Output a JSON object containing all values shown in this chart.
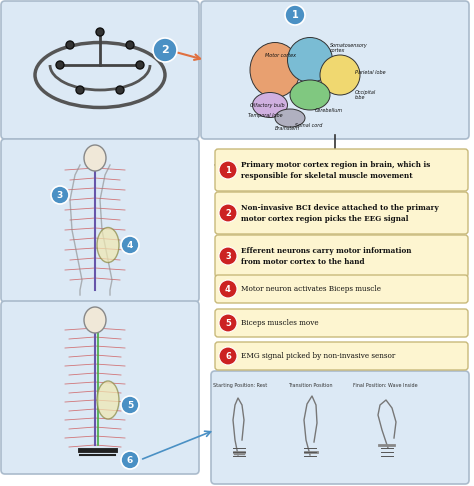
{
  "bg_color": "#ffffff",
  "panel_bg": "#dce9f5",
  "box_bg": "#fdf5d0",
  "box_border": "#c8b97a",
  "red_circle": "#cc2222",
  "steps": [
    {
      "num": "1",
      "text": "Primary motor cortex region in brain, which is\nresponsible for skeletal muscle movement"
    },
    {
      "num": "2",
      "text": "Non-invasive BCI device attached to the primary\nmotor cortex region picks the EEG signal"
    },
    {
      "num": "3",
      "text": "Efferent neurons carry motor information\nfrom motor cortex to the hand"
    },
    {
      "num": "4",
      "text": "Motor neuron activates Biceps muscle"
    },
    {
      "num": "5",
      "text": "Biceps muscles move"
    },
    {
      "num": "6",
      "text": "EMG signal picked by non-invasive sensor"
    }
  ],
  "hand_labels": [
    "Starting Position: Rest",
    "Transition Position",
    "Final Position: Wave Inside"
  ],
  "blue_circle": "#4a90c4",
  "orange_line": "#e07040",
  "dark_line": "#333333",
  "spine_line": "#6655aa",
  "nerve_line": "#cc4444"
}
